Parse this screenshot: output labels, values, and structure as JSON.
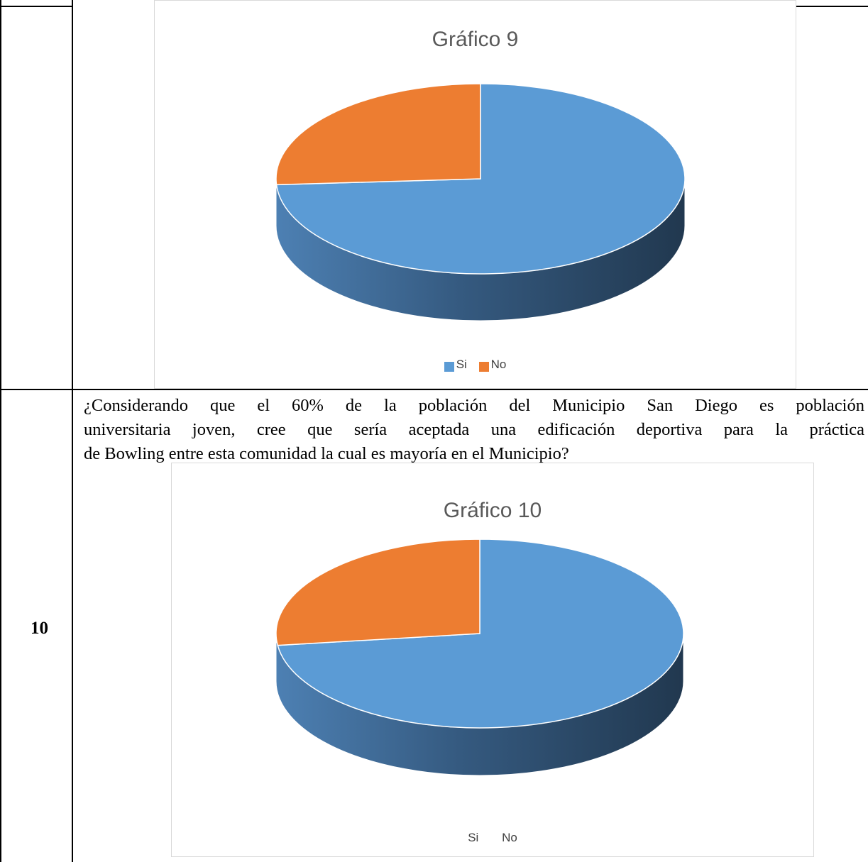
{
  "rows": [
    {
      "number": "",
      "question": "",
      "chart": {
        "title": "Gráfico 9",
        "legend": [
          "Si",
          "No"
        ]
      }
    },
    {
      "number": "10",
      "question_lines": [
        "¿Considerando que el 60% de la población del Municipio San Diego es población",
        "universitaria joven, cree que sería aceptada una edificación deportiva para la práctica",
        "de Bowling entre esta comunidad la cual es mayoría en el Municipio?"
      ],
      "chart": {
        "title": "Gráfico 10",
        "legend": [
          "Si",
          "No"
        ]
      }
    }
  ],
  "colors": {
    "si": "#5b9bd5",
    "no": "#ed7d31",
    "border": "#000000",
    "frame": "#d9d9d9"
  },
  "chart_data": [
    {
      "type": "pie",
      "title": "Gráfico 9",
      "categories": [
        "Si",
        "No"
      ],
      "values": [
        74,
        26
      ],
      "legend_position": "bottom",
      "style": "3d"
    },
    {
      "type": "pie",
      "title": "Gráfico 10",
      "categories": [
        "Si",
        "No"
      ],
      "values": [
        73,
        27
      ],
      "legend_position": "bottom",
      "style": "3d"
    }
  ]
}
